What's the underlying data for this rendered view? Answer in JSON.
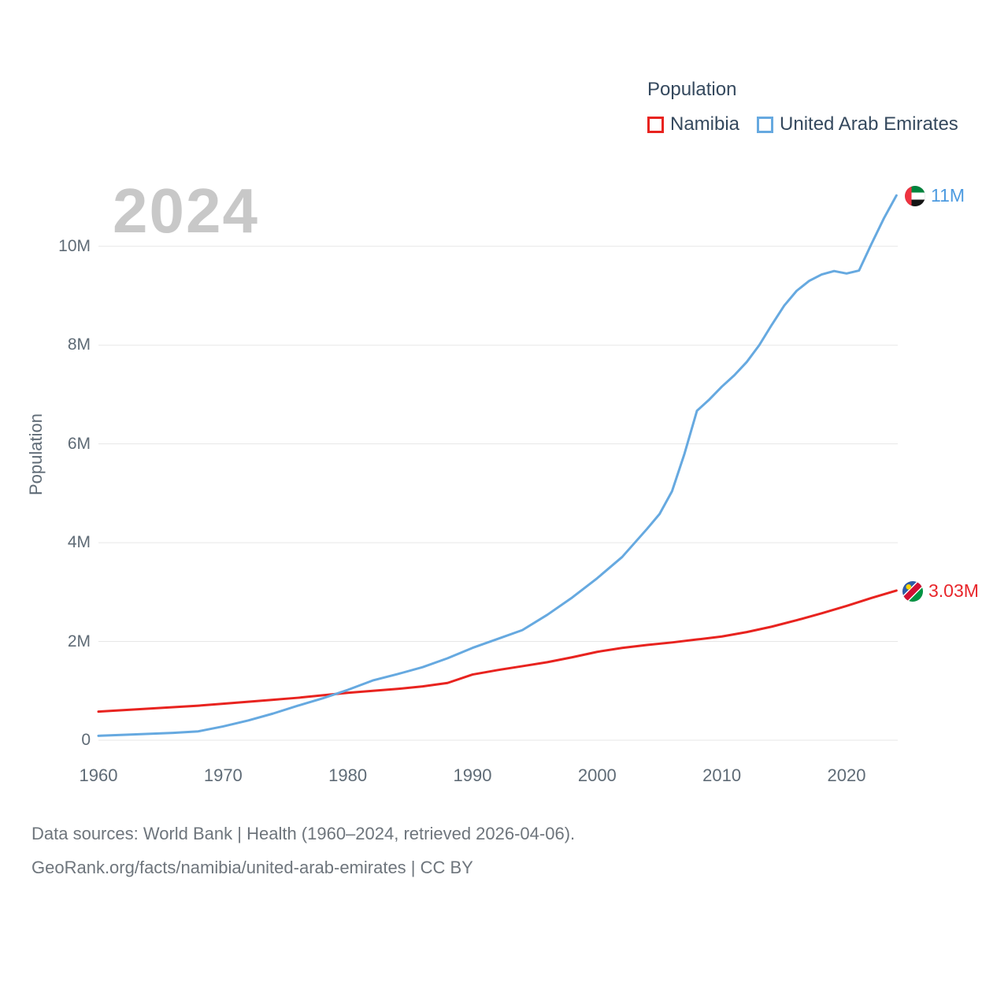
{
  "watermark": "2024",
  "legend": {
    "title": "Population",
    "items": [
      {
        "label": "Namibia",
        "color": "#e8231f"
      },
      {
        "label": "United Arab Emirates",
        "color": "#66a9e0"
      }
    ]
  },
  "chart_data": {
    "type": "line",
    "title": "Population",
    "xlabel": "",
    "ylabel": "Population",
    "xlim": [
      1960,
      2024
    ],
    "ylim": [
      0,
      11.3
    ],
    "grid": true,
    "legend_position": "top-right",
    "units": "millions of people",
    "x_ticks": [
      1960,
      1970,
      1980,
      1990,
      2000,
      2010,
      2020
    ],
    "y_ticks": [
      {
        "value": 0,
        "label": "0"
      },
      {
        "value": 2,
        "label": "2M"
      },
      {
        "value": 4,
        "label": "4M"
      },
      {
        "value": 6,
        "label": "6M"
      },
      {
        "value": 8,
        "label": "8M"
      },
      {
        "value": 10,
        "label": "10M"
      }
    ],
    "series": [
      {
        "name": "Namibia",
        "color": "#e8231f",
        "end_label": "3.03M",
        "flag": "namibia-flag",
        "x": [
          1960,
          1962,
          1964,
          1966,
          1968,
          1970,
          1972,
          1974,
          1976,
          1978,
          1980,
          1982,
          1984,
          1986,
          1988,
          1990,
          1992,
          1994,
          1996,
          1998,
          2000,
          2002,
          2004,
          2006,
          2008,
          2010,
          2012,
          2014,
          2016,
          2018,
          2020,
          2022,
          2024
        ],
        "values": [
          0.58,
          0.61,
          0.64,
          0.67,
          0.7,
          0.74,
          0.78,
          0.82,
          0.86,
          0.91,
          0.96,
          1.0,
          1.04,
          1.09,
          1.16,
          1.33,
          1.42,
          1.5,
          1.58,
          1.68,
          1.79,
          1.87,
          1.93,
          1.98,
          2.04,
          2.1,
          2.19,
          2.3,
          2.43,
          2.57,
          2.72,
          2.88,
          3.03
        ]
      },
      {
        "name": "United Arab Emirates",
        "color": "#66a9e0",
        "end_label": "11M",
        "flag": "uae-flag",
        "x": [
          1960,
          1962,
          1964,
          1966,
          1968,
          1970,
          1972,
          1974,
          1976,
          1978,
          1980,
          1982,
          1984,
          1986,
          1988,
          1990,
          1992,
          1994,
          1996,
          1998,
          2000,
          2002,
          2004,
          2005,
          2006,
          2007,
          2008,
          2009,
          2010,
          2011,
          2012,
          2013,
          2014,
          2015,
          2016,
          2017,
          2018,
          2019,
          2020,
          2021,
          2022,
          2023,
          2024
        ],
        "values": [
          0.09,
          0.11,
          0.13,
          0.15,
          0.18,
          0.28,
          0.4,
          0.54,
          0.7,
          0.85,
          1.02,
          1.21,
          1.34,
          1.48,
          1.66,
          1.87,
          2.05,
          2.23,
          2.54,
          2.89,
          3.28,
          3.71,
          4.28,
          4.58,
          5.04,
          5.8,
          6.67,
          6.9,
          7.16,
          7.39,
          7.66,
          8.0,
          8.41,
          8.8,
          9.1,
          9.3,
          9.43,
          9.5,
          9.45,
          9.51,
          10.05,
          10.57,
          11.03
        ]
      }
    ]
  },
  "footer": {
    "line1": "Data sources: World Bank | Health (1960–2024, retrieved 2026-04-06).",
    "line2": "GeoRank.org/facts/namibia/united-arab-emirates | CC BY"
  }
}
